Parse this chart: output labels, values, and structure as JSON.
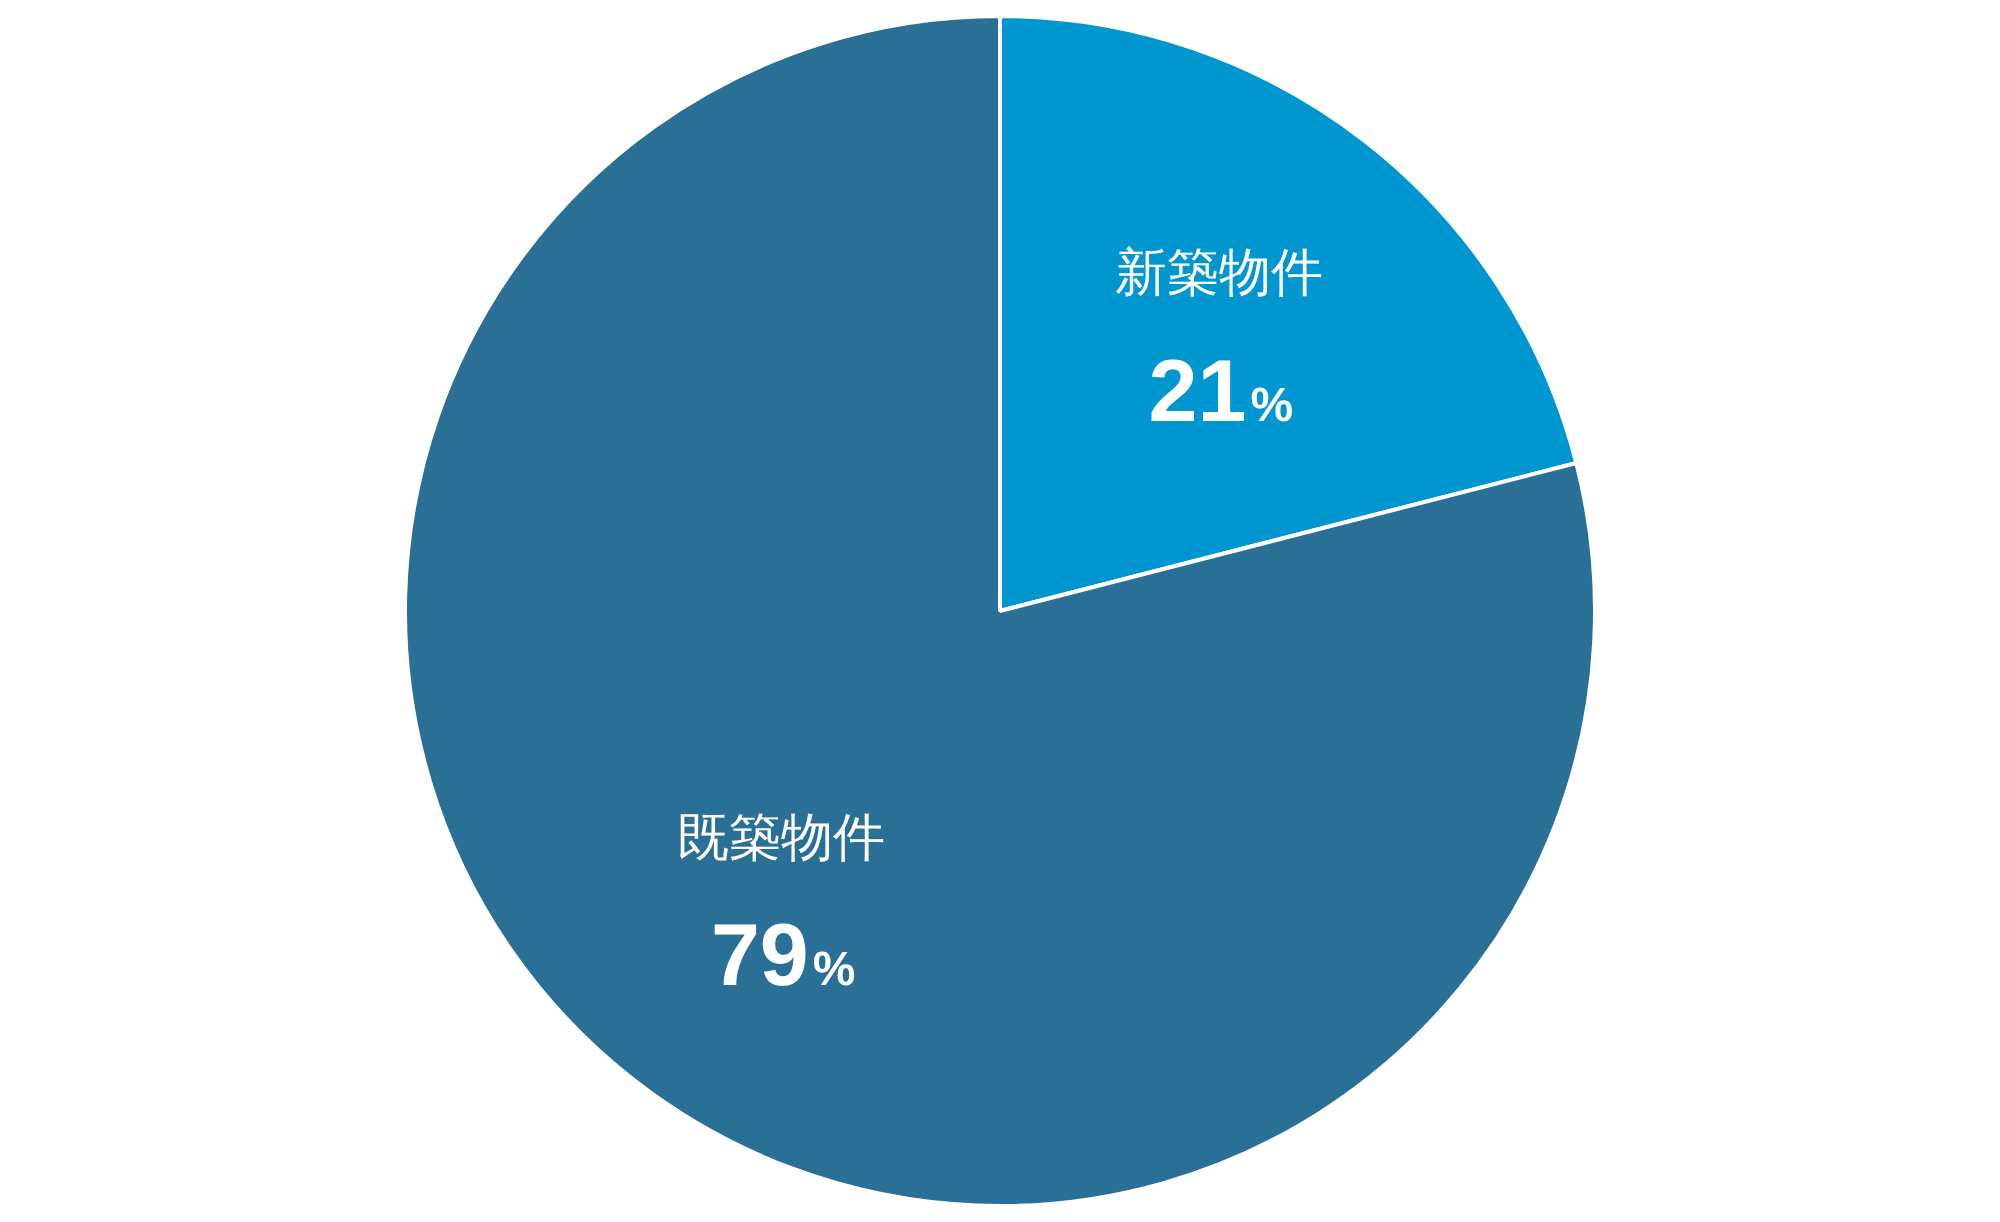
{
  "chart_data": {
    "type": "pie",
    "categories": [
      "新築物件",
      "既築物件"
    ],
    "values": [
      21,
      79
    ],
    "colors": [
      "#0096d0",
      "#2a6f96"
    ],
    "value_labels": [
      "21%",
      "79%"
    ],
    "legend": false
  }
}
